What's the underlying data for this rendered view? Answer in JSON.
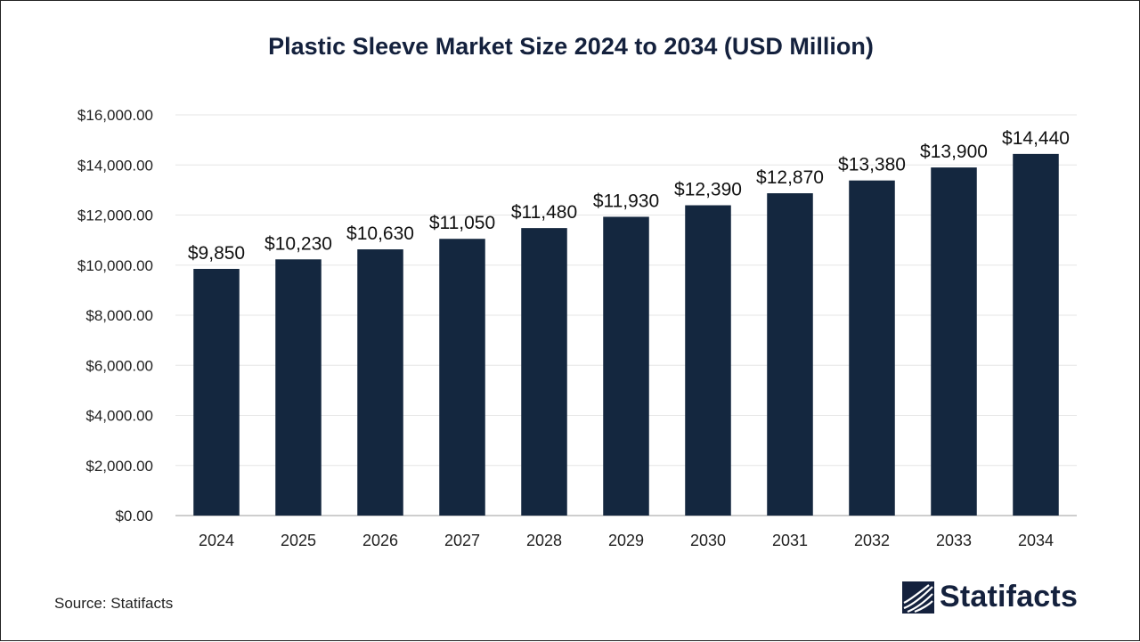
{
  "chart_data": {
    "type": "bar",
    "title": "Plastic Sleeve Market Size 2024 to 2034 (USD Million)",
    "categories": [
      "2024",
      "2025",
      "2026",
      "2027",
      "2028",
      "2029",
      "2030",
      "2031",
      "2032",
      "2033",
      "2034"
    ],
    "values": [
      9850,
      10230,
      10630,
      11050,
      11480,
      11930,
      12390,
      12870,
      13380,
      13900,
      14440
    ],
    "data_labels": [
      "$9,850",
      "$10,230",
      "$10,630",
      "$11,050",
      "$11,480",
      "$11,930",
      "$12,390",
      "$12,870",
      "$13,380",
      "$13,900",
      "$14,440"
    ],
    "y_ticks": [
      0,
      2000,
      4000,
      6000,
      8000,
      10000,
      12000,
      14000,
      16000
    ],
    "y_tick_labels": [
      "$0.00",
      "$2,000.00",
      "$4,000.00",
      "$6,000.00",
      "$8,000.00",
      "$10,000.00",
      "$12,000.00",
      "$14,000.00",
      "$16,000.00"
    ],
    "ylim": [
      0,
      16000
    ],
    "xlabel": "",
    "ylabel": "",
    "grid": true,
    "legend": "none",
    "bar_color": "#14273f"
  },
  "footer": {
    "source": "Source: Statifacts",
    "brand": "Statifacts"
  },
  "icons": {
    "brand_logo": "statifacts-logo-icon"
  }
}
